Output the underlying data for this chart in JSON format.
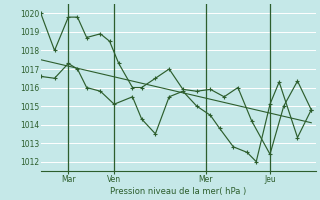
{
  "background_color": "#c5e8e8",
  "grid_color": "#ffffff",
  "line_color": "#2d5e2d",
  "text_color": "#2d5e2d",
  "xlabel": "Pression niveau de la mer( hPa )",
  "x_tick_labels": [
    "Mar",
    "Ven",
    "Mer",
    "Jeu"
  ],
  "ylim": [
    1011.5,
    1020.5
  ],
  "yticks": [
    1012,
    1013,
    1014,
    1015,
    1016,
    1017,
    1018,
    1019,
    1020
  ],
  "xlim": [
    0,
    30
  ],
  "vline_positions": [
    3,
    8,
    18,
    25
  ],
  "xtick_positions": [
    3,
    8,
    18,
    25
  ],
  "series1_x": [
    0.0,
    1.5,
    3.0,
    4.0,
    5.0,
    6.5,
    7.5,
    8.5,
    10.0,
    11.0,
    12.5,
    14.0,
    15.5,
    17.0,
    18.5,
    20.0,
    21.5,
    23.0,
    25.0,
    26.5,
    28.0,
    29.5
  ],
  "series1_y": [
    1020.0,
    1018.0,
    1019.8,
    1019.8,
    1018.7,
    1018.9,
    1018.5,
    1017.3,
    1016.0,
    1016.0,
    1016.5,
    1017.0,
    1015.9,
    1015.8,
    1015.9,
    1015.5,
    1016.0,
    1014.2,
    1012.4,
    1015.0,
    1016.35,
    1014.8
  ],
  "series2_x": [
    0.0,
    1.5,
    3.0,
    4.0,
    5.0,
    6.5,
    8.0,
    10.0,
    11.0,
    12.5,
    14.0,
    15.5,
    17.0,
    18.5,
    19.5,
    21.0,
    22.5,
    23.5,
    25.0,
    26.0,
    28.0,
    29.5
  ],
  "series2_y": [
    1016.6,
    1016.5,
    1017.3,
    1017.0,
    1016.0,
    1015.8,
    1015.1,
    1015.5,
    1014.3,
    1013.5,
    1015.5,
    1015.8,
    1015.0,
    1014.5,
    1013.8,
    1012.8,
    1012.5,
    1012.0,
    1015.1,
    1016.3,
    1013.3,
    1014.8
  ],
  "series3_x": [
    0.0,
    29.5
  ],
  "series3_y": [
    1017.5,
    1014.1
  ]
}
